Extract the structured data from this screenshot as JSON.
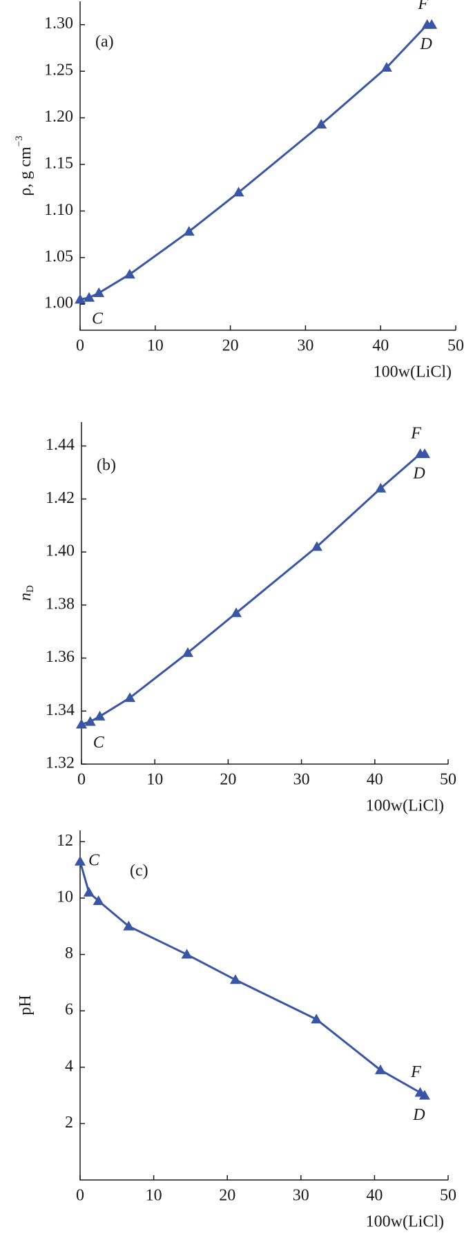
{
  "chart_data": [
    {
      "type": "line",
      "panel_label": "(a)",
      "x_label": "100w(LiCl)",
      "y_label": "ρ, g cm",
      "y_label_sup": "−3",
      "x": [
        0,
        1.2,
        2.5,
        6.6,
        14.5,
        21.1,
        32.1,
        40.8,
        46.2,
        46.8
      ],
      "series": [
        {
          "color": "#3a55a4",
          "values": [
            1.005,
            1.007,
            1.012,
            1.032,
            1.078,
            1.12,
            1.193,
            1.254,
            1.3,
            1.3
          ]
        }
      ],
      "point_labels": [
        "C",
        "F",
        "D"
      ],
      "xlim": [
        0,
        50
      ],
      "xticks": [
        0,
        10,
        20,
        30,
        40,
        50
      ],
      "ylim": [
        0.972,
        1.325
      ],
      "yticks": [
        {
          "value": 1.0,
          "label": "1.00"
        },
        {
          "value": 1.05,
          "label": "1.05"
        },
        {
          "value": 1.1,
          "label": "1.10"
        },
        {
          "value": 1.15,
          "label": "1.15"
        },
        {
          "value": 1.2,
          "label": "1.20"
        },
        {
          "value": 1.25,
          "label": "1.25"
        },
        {
          "value": 1.3,
          "label": "1.30"
        }
      ]
    },
    {
      "type": "line",
      "panel_label": "(b)",
      "x_label": "100w(LiCl)",
      "y_label": "n",
      "y_label_sub": "D",
      "x": [
        0,
        1.2,
        2.5,
        6.6,
        14.5,
        21.1,
        32.1,
        40.8,
        46.2,
        46.8
      ],
      "series": [
        {
          "color": "#3a55a4",
          "values": [
            1.335,
            1.336,
            1.338,
            1.345,
            1.362,
            1.377,
            1.402,
            1.424,
            1.437,
            1.437
          ]
        }
      ],
      "point_labels": [
        "C",
        "F",
        "D"
      ],
      "xlim": [
        0,
        50
      ],
      "xticks": [
        0,
        10,
        20,
        30,
        40,
        50
      ],
      "ylim": [
        1.32,
        1.449
      ],
      "yticks": [
        {
          "value": 1.32,
          "label": "1.32"
        },
        {
          "value": 1.34,
          "label": "1.34"
        },
        {
          "value": 1.36,
          "label": "1.36"
        },
        {
          "value": 1.38,
          "label": "1.38"
        },
        {
          "value": 1.4,
          "label": "1.40"
        },
        {
          "value": 1.42,
          "label": "1.42"
        },
        {
          "value": 1.44,
          "label": "1.44"
        }
      ]
    },
    {
      "type": "line",
      "panel_label": "(c)",
      "x_label": "100w(LiCl)",
      "y_label": "pH",
      "x": [
        0,
        1.2,
        2.5,
        6.6,
        14.5,
        21.1,
        32.1,
        40.8,
        46.2,
        46.8
      ],
      "series": [
        {
          "color": "#3a55a4",
          "values": [
            11.3,
            10.2,
            9.9,
            9.0,
            8.0,
            7.1,
            5.7,
            3.9,
            3.1,
            3.0
          ]
        }
      ],
      "point_labels": [
        "C",
        "F",
        "D"
      ],
      "xlim": [
        0,
        50
      ],
      "xticks": [
        0,
        10,
        20,
        30,
        40,
        50
      ],
      "ylim": [
        0,
        12.4
      ],
      "yticks": [
        2,
        4,
        6,
        8,
        10,
        12
      ]
    }
  ]
}
